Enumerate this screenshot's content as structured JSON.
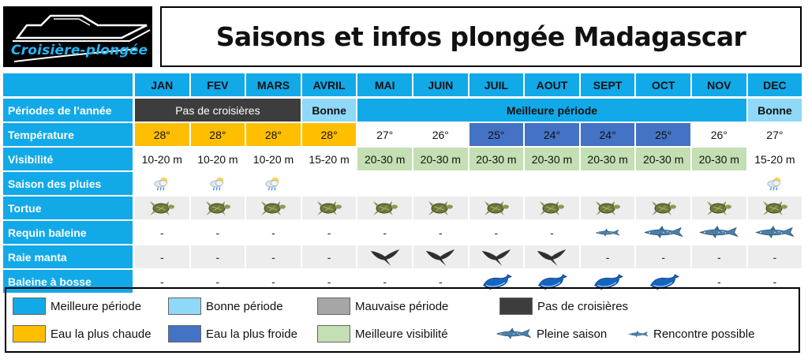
{
  "logo": {
    "text": "Croisière-plongée"
  },
  "title": "Saisons et infos plongée Madagascar",
  "colors": {
    "best": "#12a9e8",
    "good": "#8fd8f8",
    "bad": "#a6a6a6",
    "none": "#3d3d3d",
    "warm": "#ffbf00",
    "cold": "#4472c4",
    "vis": "#c4dfb3",
    "neutral": "#ededed"
  },
  "months": [
    "JAN",
    "FEV",
    "MARS",
    "AVRIL",
    "MAI",
    "JUIN",
    "JUIL",
    "AOUT",
    "SEPT",
    "OCT",
    "NOV",
    "DEC"
  ],
  "rows": {
    "periods": {
      "label": "Périodes de l’année",
      "segments": [
        {
          "text": "Pas de croisières",
          "span": 3,
          "kind": "none"
        },
        {
          "text": "Bonne",
          "span": 1,
          "kind": "good"
        },
        {
          "text": "Meilleure période",
          "span": 7,
          "kind": "best"
        },
        {
          "text": "Bonne",
          "span": 1,
          "kind": "good"
        }
      ]
    },
    "temperature": {
      "label": "Température",
      "values": [
        "28°",
        "28°",
        "28°",
        "28°",
        "27°",
        "26°",
        "25°",
        "24°",
        "24°",
        "25°",
        "26°",
        "27°"
      ],
      "kinds": [
        "warm",
        "warm",
        "warm",
        "warm",
        "",
        "",
        "cold",
        "cold",
        "cold",
        "cold",
        "",
        ""
      ]
    },
    "visibility": {
      "label": "Visibilité",
      "values": [
        "10-20 m",
        "10-20 m",
        "10-20 m",
        "15-20 m",
        "20-30 m",
        "20-30 m",
        "20-30 m",
        "20-30 m",
        "20-30 m",
        "20-30 m",
        "20-30 m",
        "15-20 m"
      ],
      "kinds": [
        "",
        "",
        "",
        "",
        "vis",
        "vis",
        "vis",
        "vis",
        "vis",
        "vis",
        "vis",
        ""
      ]
    },
    "rain": {
      "label": "Saison des pluies",
      "cells": [
        "rain",
        "rain",
        "rain",
        "",
        "",
        "",
        "",
        "",
        "",
        "",
        "",
        "rain"
      ]
    },
    "turtle": {
      "label": "Tortue",
      "cells": [
        "turtle",
        "turtle",
        "turtle",
        "turtle",
        "turtle",
        "turtle",
        "turtle",
        "turtle",
        "turtle",
        "turtle",
        "turtle",
        "turtle"
      ]
    },
    "whaleshark": {
      "label": "Requin baleine",
      "cells": [
        "-",
        "-",
        "-",
        "-",
        "-",
        "-",
        "-",
        "-",
        "shark-small",
        "shark-large",
        "shark-large",
        "shark-large"
      ]
    },
    "manta": {
      "label": "Raie manta",
      "cells": [
        "-",
        "-",
        "-",
        "-",
        "manta",
        "manta",
        "manta",
        "manta",
        "-",
        "-",
        "-",
        "-"
      ]
    },
    "humpback": {
      "label": "Baleine à bosse",
      "cells": [
        "-",
        "-",
        "-",
        "-",
        "-",
        "-",
        "whale",
        "whale",
        "whale",
        "whale",
        "-",
        "-"
      ]
    }
  },
  "legend": [
    {
      "text": "Meilleure période",
      "kind": "best"
    },
    {
      "text": "Bonne période",
      "kind": "good"
    },
    {
      "text": "Mauvaise période",
      "kind": "bad"
    },
    {
      "text": "Pas de croisières",
      "kind": "none"
    },
    {
      "text": "Eau la plus chaude",
      "kind": "warm"
    },
    {
      "text": "Eau la plus froide",
      "kind": "cold"
    },
    {
      "text": "Meilleure visibilité",
      "kind": "vis"
    },
    {
      "text": "Pleine saison",
      "kind": "shark-large-icon"
    },
    {
      "text": "Rencontre possible",
      "kind": "shark-small-icon"
    }
  ]
}
